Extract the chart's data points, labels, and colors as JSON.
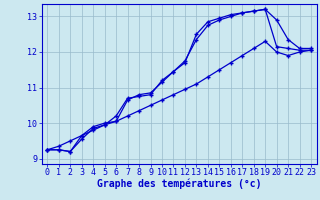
{
  "bg_color": "#cce8f0",
  "line_color": "#0000cc",
  "grid_color": "#99bbcc",
  "xlabel": "Graphe des températures (°c)",
  "xlabel_color": "#0000cc",
  "xlabel_fontsize": 7,
  "tick_color": "#0000cc",
  "tick_fontsize": 6,
  "xlim": [
    -0.5,
    23.5
  ],
  "ylim": [
    8.85,
    13.35
  ],
  "yticks": [
    9,
    10,
    11,
    12,
    13
  ],
  "xticks": [
    0,
    1,
    2,
    3,
    4,
    5,
    6,
    7,
    8,
    9,
    10,
    11,
    12,
    13,
    14,
    15,
    16,
    17,
    18,
    19,
    20,
    21,
    22,
    23
  ],
  "series1_x": [
    0,
    1,
    2,
    3,
    4,
    5,
    6,
    7,
    8,
    9,
    10,
    11,
    12,
    13,
    14,
    15,
    16,
    17,
    18,
    19,
    20,
    21,
    22,
    23
  ],
  "series1_y": [
    9.25,
    9.25,
    9.2,
    9.65,
    9.9,
    10.0,
    10.05,
    10.65,
    10.8,
    10.85,
    11.15,
    11.45,
    11.7,
    12.5,
    12.85,
    12.95,
    13.05,
    13.1,
    13.15,
    13.2,
    12.9,
    12.35,
    12.1,
    12.1
  ],
  "series2_x": [
    0,
    1,
    2,
    3,
    4,
    5,
    6,
    7,
    8,
    9,
    10,
    11,
    12,
    13,
    14,
    15,
    16,
    17,
    18,
    19,
    20,
    21,
    22,
    23
  ],
  "series2_y": [
    9.25,
    9.25,
    9.2,
    9.55,
    9.85,
    9.95,
    10.2,
    10.7,
    10.75,
    10.8,
    11.2,
    11.45,
    11.75,
    12.35,
    12.75,
    12.9,
    13.0,
    13.1,
    13.15,
    13.2,
    12.15,
    12.1,
    12.05,
    12.05
  ],
  "series3_x": [
    0,
    1,
    2,
    3,
    4,
    5,
    6,
    7,
    8,
    9,
    10,
    11,
    12,
    13,
    14,
    15,
    16,
    17,
    18,
    19,
    20,
    21,
    22,
    23
  ],
  "series3_y": [
    9.25,
    9.35,
    9.5,
    9.65,
    9.8,
    9.95,
    10.05,
    10.2,
    10.35,
    10.5,
    10.65,
    10.8,
    10.95,
    11.1,
    11.3,
    11.5,
    11.7,
    11.9,
    12.1,
    12.3,
    12.0,
    11.9,
    12.0,
    12.05
  ]
}
